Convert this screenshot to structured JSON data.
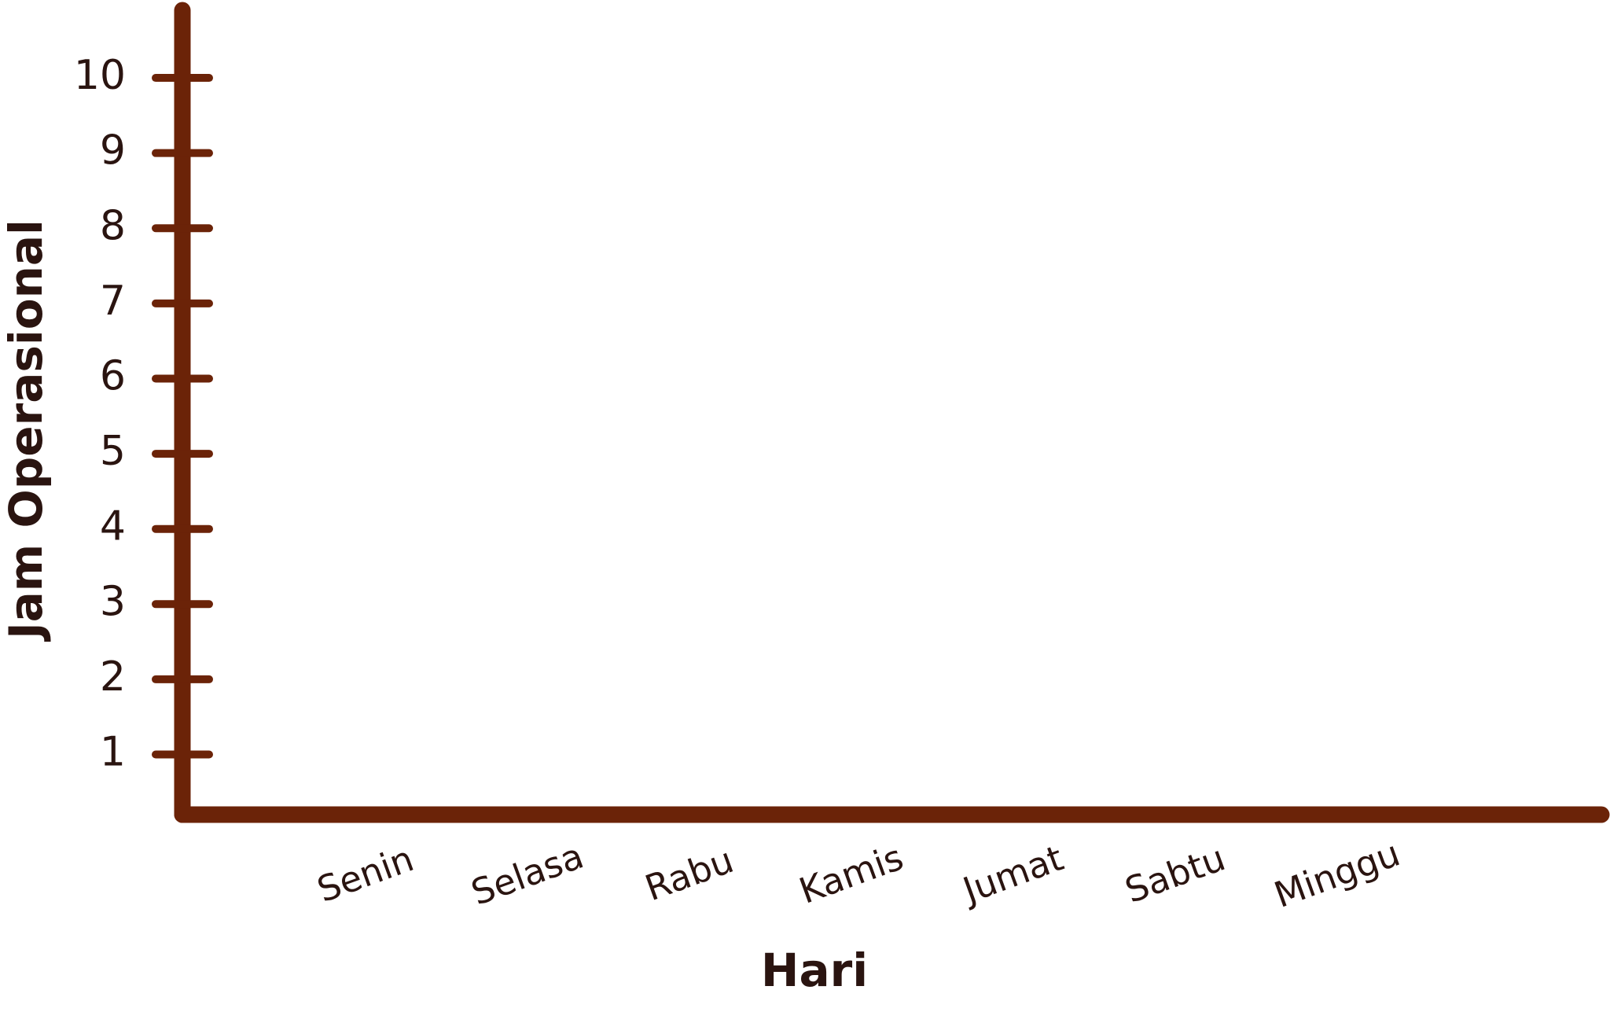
{
  "chart_data": {
    "type": "bar",
    "xlabel": "Hari",
    "ylabel": "Jam Operasional",
    "categories": [
      "Senin",
      "Selasa",
      "Rabu",
      "Kamis",
      "Jumat",
      "Sabtu",
      "Minggu"
    ],
    "ylim": [
      0.2,
      10.9
    ],
    "yticks": [
      1,
      2,
      3,
      4,
      5,
      6,
      7,
      8,
      9,
      10
    ],
    "color": "#6b2308",
    "grid": false
  }
}
